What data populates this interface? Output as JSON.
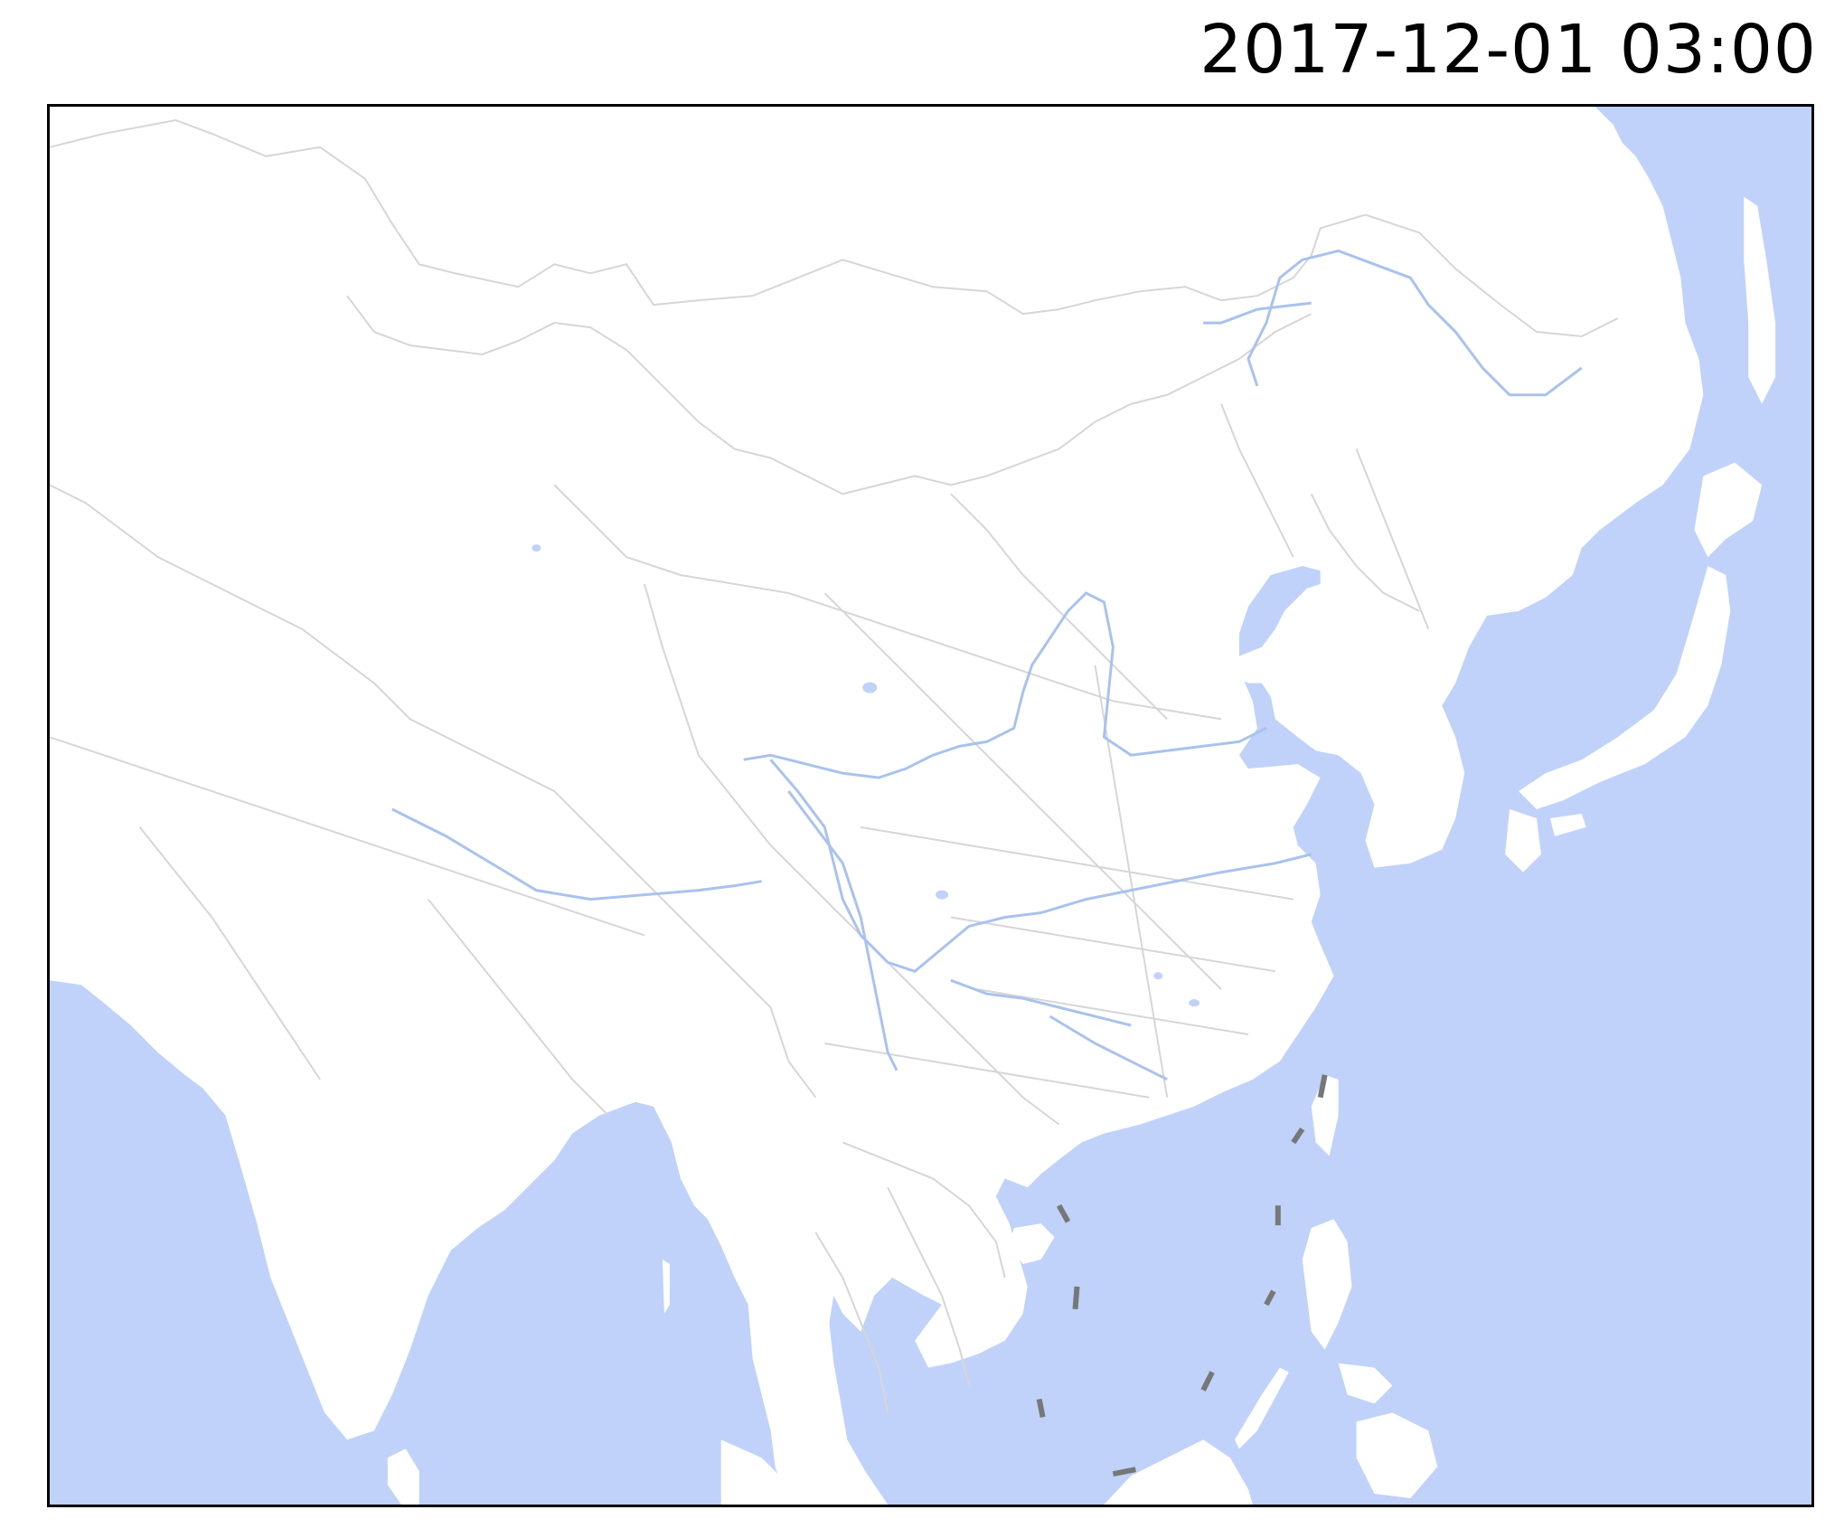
{
  "header": {
    "timestamp": "2017-12-01 03:00"
  },
  "colors": {
    "ocean": "#c0d2fa",
    "land": "#ffffff",
    "boundary": "#d6d6d6",
    "river": "#a9c2ee",
    "nine_dash": "#777777",
    "frame": "#000000"
  },
  "icons": [
    "nine-dash-line"
  ]
}
